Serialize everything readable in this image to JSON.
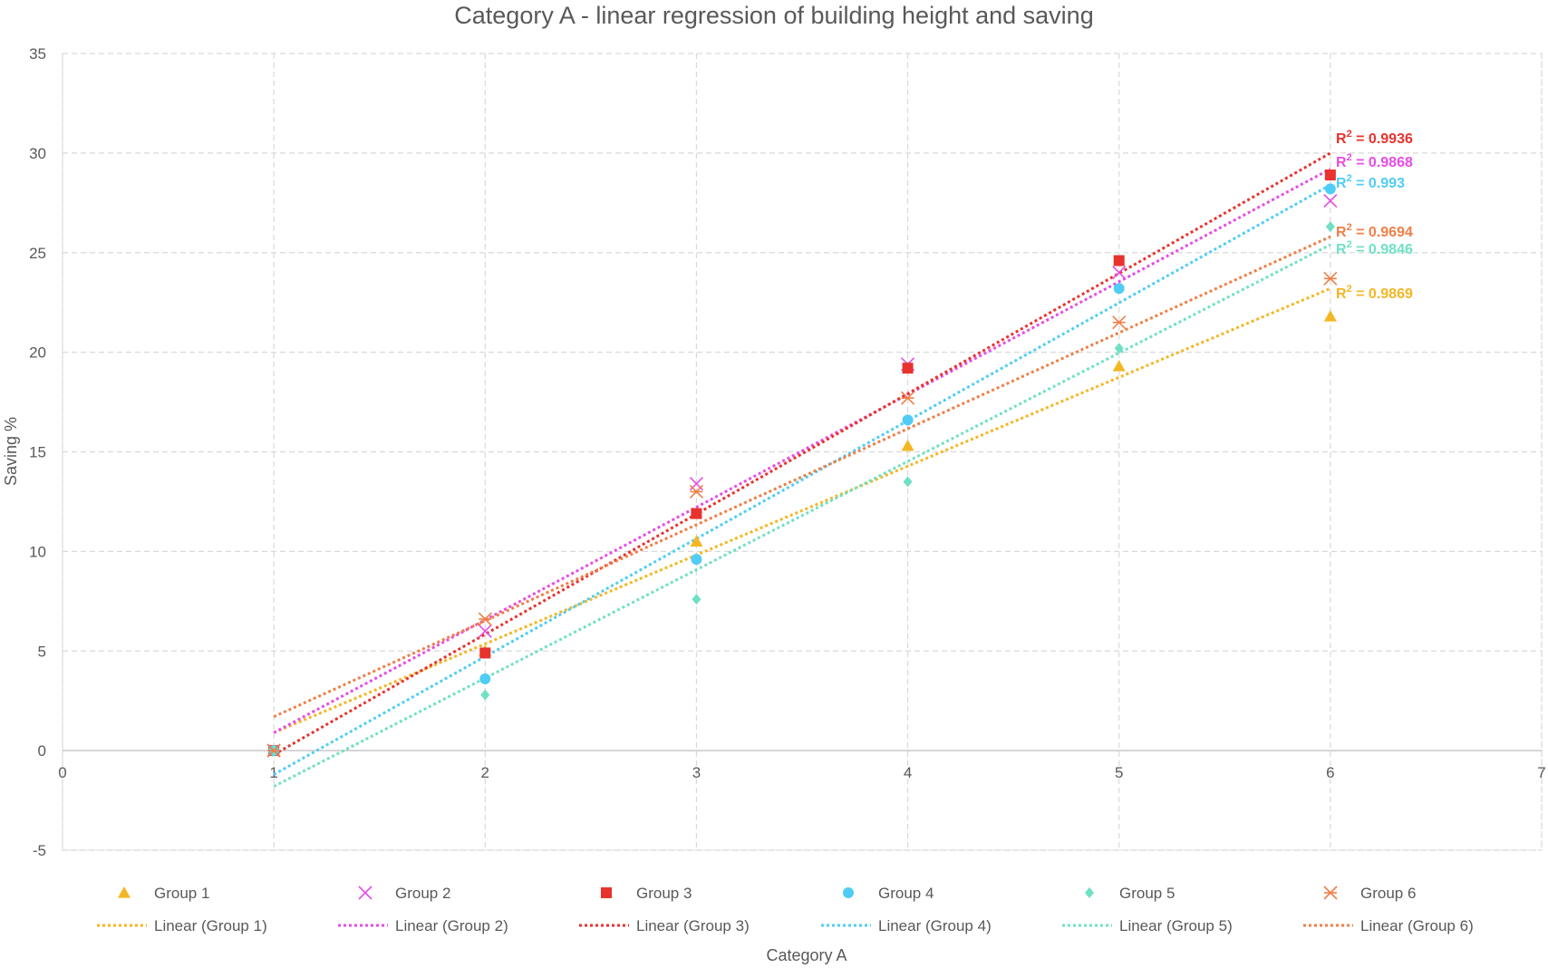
{
  "chart_data": {
    "type": "scatter",
    "title": "Category A - linear regression of building height and saving",
    "xlabel": "Category A",
    "ylabel": "Saving %",
    "xlim": [
      0,
      7
    ],
    "ylim": [
      -5,
      35
    ],
    "xticks": [
      "0",
      "1",
      "2",
      "3",
      "4",
      "5",
      "6",
      "7"
    ],
    "yticks": [
      "-5",
      "0",
      "5",
      "10",
      "15",
      "20",
      "25",
      "30",
      "35"
    ],
    "grid": true,
    "legend_position": "bottom",
    "r2_superscript": "2",
    "x": [
      1,
      2,
      3,
      4,
      5,
      6
    ],
    "series": [
      {
        "name": "Group 1",
        "trend_name": "Linear (Group 1)",
        "color": "#f4b622",
        "marker": "triangle",
        "values": [
          0,
          5.0,
          10.5,
          15.3,
          19.3,
          21.8
        ],
        "r2_prefix": "R",
        "r2_value": " = 0.9869",
        "trend": [
          0.9,
          23.2
        ]
      },
      {
        "name": "Group 2",
        "trend_name": "Linear (Group 2)",
        "color": "#e64ce6",
        "marker": "x",
        "values": [
          0,
          6.0,
          13.4,
          19.4,
          24.0,
          27.6
        ],
        "r2_prefix": "R",
        "r2_value": " = 0.9868",
        "trend": [
          0.9,
          29.2
        ]
      },
      {
        "name": "Group 3",
        "trend_name": "Linear (Group 3)",
        "color": "#e8322d",
        "marker": "square",
        "values": [
          0,
          4.9,
          11.9,
          19.2,
          24.6,
          28.9
        ],
        "r2_prefix": "R",
        "r2_value": " = 0.9936",
        "trend": [
          -0.2,
          30.0
        ]
      },
      {
        "name": "Group 4",
        "trend_name": "Linear (Group 4)",
        "color": "#4fcdf5",
        "marker": "circle",
        "values": [
          0,
          3.6,
          9.6,
          16.6,
          23.2,
          28.2
        ],
        "r2_prefix": "R",
        "r2_value": " = 0.993",
        "trend": [
          -1.2,
          28.4
        ]
      },
      {
        "name": "Group 5",
        "trend_name": "Linear (Group 5)",
        "color": "#6fe0c4",
        "marker": "diamond",
        "values": [
          0,
          2.8,
          7.6,
          13.5,
          20.2,
          26.3
        ],
        "r2_prefix": "R",
        "r2_value": " = 0.9846",
        "trend": [
          -1.8,
          25.4
        ]
      },
      {
        "name": "Group 6",
        "trend_name": "Linear (Group 6)",
        "color": "#ee7f46",
        "marker": "star",
        "values": [
          0,
          6.6,
          13.0,
          17.7,
          21.5,
          23.7
        ],
        "r2_prefix": "R",
        "r2_value": " = 0.9694",
        "trend": [
          1.7,
          25.8
        ]
      }
    ]
  }
}
